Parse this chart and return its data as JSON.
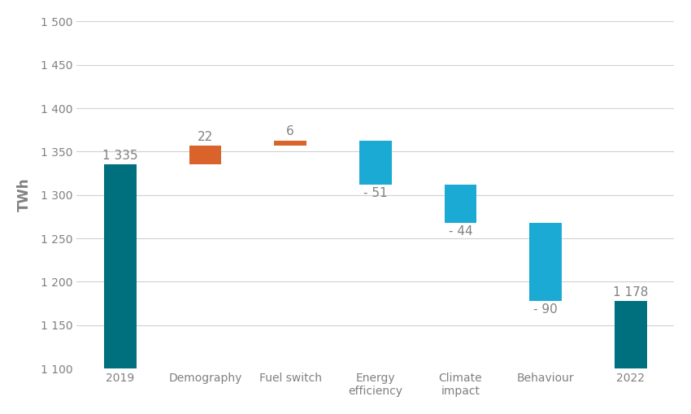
{
  "categories": [
    "2019",
    "Demography",
    "Fuel switch",
    "Energy\nefficiency",
    "Climate\nimpact",
    "Behaviour",
    "2022"
  ],
  "bar_bottoms": [
    1100,
    1335,
    1357,
    1312,
    1268,
    1178,
    1100
  ],
  "bar_tops": [
    1335,
    1357,
    1363,
    1363,
    1312,
    1268,
    1178
  ],
  "bar_colors": [
    "#006f7e",
    "#d9632a",
    "#d9632a",
    "#1aaad4",
    "#1aaad4",
    "#1aaad4",
    "#006f7e"
  ],
  "bar_labels": [
    "1 335",
    "22",
    "6",
    "- 51",
    "- 44",
    "- 90",
    "1 178"
  ],
  "label_positions": [
    "above_top",
    "above_top",
    "above_top",
    "below_bottom",
    "below_bottom",
    "below_bottom",
    "above_top"
  ],
  "ylabel": "TWh",
  "ylim": [
    1100,
    1500
  ],
  "yticks": [
    1100,
    1150,
    1200,
    1250,
    1300,
    1350,
    1400,
    1450,
    1500
  ],
  "background_color": "#ffffff",
  "grid_color": "#d0d0d0",
  "text_color": "#808080",
  "label_fontsize": 11,
  "tick_fontsize": 10,
  "bar_width": 0.38,
  "figsize": [
    8.5,
    5.09
  ],
  "dpi": 100
}
